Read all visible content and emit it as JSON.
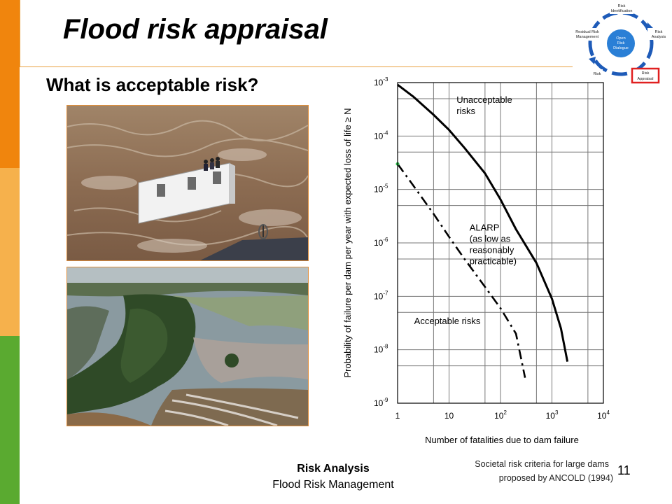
{
  "slide": {
    "title": "Flood risk appraisal",
    "subtitle": "What is acceptable risk?",
    "footer_line1": "Risk Analysis",
    "footer_line2": "Flood Risk Management",
    "page_number": "11",
    "caption_line1": "Societal risk criteria for large dams",
    "caption_line2": "proposed by ANCOLD (1994)"
  },
  "cycle_diagram": {
    "center_line1": "Open",
    "center_line2": "Risk",
    "center_line3": "Dialogue",
    "top_line1": "Risk",
    "top_line2": "Identification",
    "right_line1": "Risk",
    "right_line2": "Analysis",
    "highlight_line1": "Risk",
    "highlight_line2": "Appraisal",
    "left_line1": "Residual Risk",
    "left_line2": "Management",
    "bottom_left_label": "Risk",
    "highlight_color": "#e02020",
    "ring_color": "#1e5bb8"
  },
  "chart_data": {
    "type": "line",
    "xlabel": "Number of fatalities due to dam failure",
    "ylabel": "Probability of failure per dam per year with expected loss of life ≥ N",
    "x_scale": "log",
    "y_scale": "log",
    "xlim": [
      1,
      10000
    ],
    "ylim": [
      1e-09,
      0.001
    ],
    "x_ticks": [
      {
        "label": "1",
        "exp": ""
      },
      {
        "label": "10",
        "exp": ""
      },
      {
        "label": "10",
        "exp": "2"
      },
      {
        "label": "10",
        "exp": "3"
      },
      {
        "label": "10",
        "exp": "4"
      }
    ],
    "y_ticks": [
      {
        "label": "10",
        "exp": "-3"
      },
      {
        "label": "10",
        "exp": "-4"
      },
      {
        "label": "10",
        "exp": "-5"
      },
      {
        "label": "10",
        "exp": "-6"
      },
      {
        "label": "10",
        "exp": "-7"
      },
      {
        "label": "10",
        "exp": "-8"
      },
      {
        "label": "10",
        "exp": "-9"
      }
    ],
    "grid": true,
    "series": [
      {
        "style": "solid",
        "x": [
          1,
          2,
          5,
          10,
          20,
          50,
          100,
          200,
          500,
          1000,
          1500,
          2000
        ],
        "y": [
          0.00091,
          0.00055,
          0.00025,
          0.00013,
          6e-05,
          2e-05,
          6.5e-06,
          1.8e-06,
          4.2e-07,
          9e-08,
          2.5e-08,
          6e-09
        ]
      },
      {
        "style": "dash-dot",
        "x": [
          1,
          2,
          5,
          10,
          20,
          50,
          100,
          200,
          300
        ],
        "y": [
          3e-05,
          1.2e-05,
          3.5e-06,
          1.3e-06,
          5e-07,
          1.5e-07,
          6e-08,
          2e-08,
          3e-09
        ]
      }
    ],
    "annotations": [
      {
        "lines": [
          "Unacceptable",
          "risks"
        ],
        "x": 14,
        "y": 0.00042
      },
      {
        "lines": [
          "ALARP",
          "(as low as",
          "reasonably",
          "practicable)"
        ],
        "x": 25,
        "y": 1.7e-06
      },
      {
        "lines": [
          "Acceptable risks"
        ],
        "x": 2.1,
        "y": 3e-08
      }
    ]
  }
}
